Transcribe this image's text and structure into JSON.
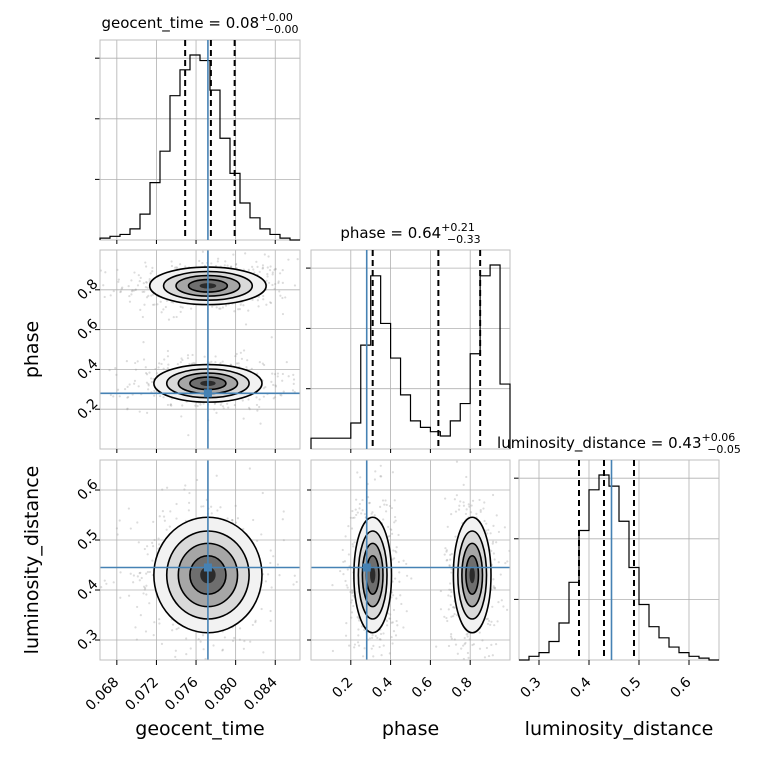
{
  "chart_data": {
    "type": "corner",
    "parameters": [
      {
        "name": "geocent_time",
        "label": "geocent_time",
        "range": [
          0.0663,
          0.0865
        ],
        "ticks": [
          0.068,
          0.072,
          0.076,
          0.08,
          0.084
        ],
        "tick_labels": [
          "0.068",
          "0.072",
          "0.076",
          "0.080",
          "0.084"
        ],
        "title": "geocent_time = 0.08",
        "title_sup": "+0.00",
        "title_sub": "−0.00",
        "truth": 0.0772,
        "quantiles": [
          0.0749,
          0.0775,
          0.0799
        ]
      },
      {
        "name": "phase",
        "label": "phase",
        "range": [
          0.0,
          1.0
        ],
        "ticks": [
          0.2,
          0.4,
          0.6,
          0.8
        ],
        "tick_labels": [
          "0.2",
          "0.4",
          "0.6",
          "0.8"
        ],
        "title": "phase = 0.64",
        "title_sup": "+0.21",
        "title_sub": "−0.33",
        "truth": 0.28,
        "quantiles": [
          0.31,
          0.64,
          0.85
        ]
      },
      {
        "name": "luminosity_distance",
        "label": "luminosity_distance",
        "range": [
          0.26,
          0.66
        ],
        "ticks": [
          0.3,
          0.4,
          0.5,
          0.6
        ],
        "tick_labels": [
          "0.3",
          "0.4",
          "0.5",
          "0.6"
        ],
        "title": "luminosity_distance = 0.43",
        "title_sup": "+0.06",
        "title_sub": "−0.05",
        "truth": 0.445,
        "quantiles": [
          0.38,
          0.43,
          0.49
        ]
      }
    ],
    "histograms": [
      {
        "param": "geocent_time",
        "bin_edges_range": [
          0.0663,
          0.0865
        ],
        "bins": 20,
        "counts": [
          1,
          2,
          3,
          6,
          14,
          31,
          48,
          78,
          92,
          100,
          97,
          81,
          55,
          36,
          20,
          12,
          6,
          3,
          1,
          0
        ]
      },
      {
        "param": "phase",
        "bin_edges_range": [
          0.0,
          1.0
        ],
        "bins": 20,
        "counts": [
          5,
          5,
          5,
          5,
          12,
          48,
          80,
          58,
          42,
          25,
          13,
          10,
          8,
          6,
          13,
          21,
          44,
          80,
          85,
          30
        ]
      },
      {
        "param": "luminosity_distance",
        "bin_edges_range": [
          0.26,
          0.66
        ],
        "bins": 20,
        "counts": [
          0,
          2,
          4,
          10,
          20,
          42,
          70,
          92,
          100,
          94,
          75,
          50,
          30,
          18,
          12,
          7,
          4,
          2,
          1,
          0
        ]
      }
    ],
    "truth_color": "#4682b4",
    "posterior_modes": {
      "geocent_time_phase": [
        {
          "center": [
            0.0772,
            0.82
          ],
          "spread": [
            0.0028,
            0.045
          ]
        },
        {
          "center": [
            0.0772,
            0.33
          ],
          "spread": [
            0.0026,
            0.045
          ]
        }
      ],
      "geocent_time_luminosity_distance": [
        {
          "center": [
            0.0772,
            0.43
          ],
          "spread": [
            0.0026,
            0.055
          ]
        }
      ],
      "phase_luminosity_distance": [
        {
          "center": [
            0.31,
            0.43
          ],
          "spread": [
            0.045,
            0.055
          ]
        },
        {
          "center": [
            0.81,
            0.43
          ],
          "spread": [
            0.045,
            0.055
          ]
        }
      ]
    }
  }
}
